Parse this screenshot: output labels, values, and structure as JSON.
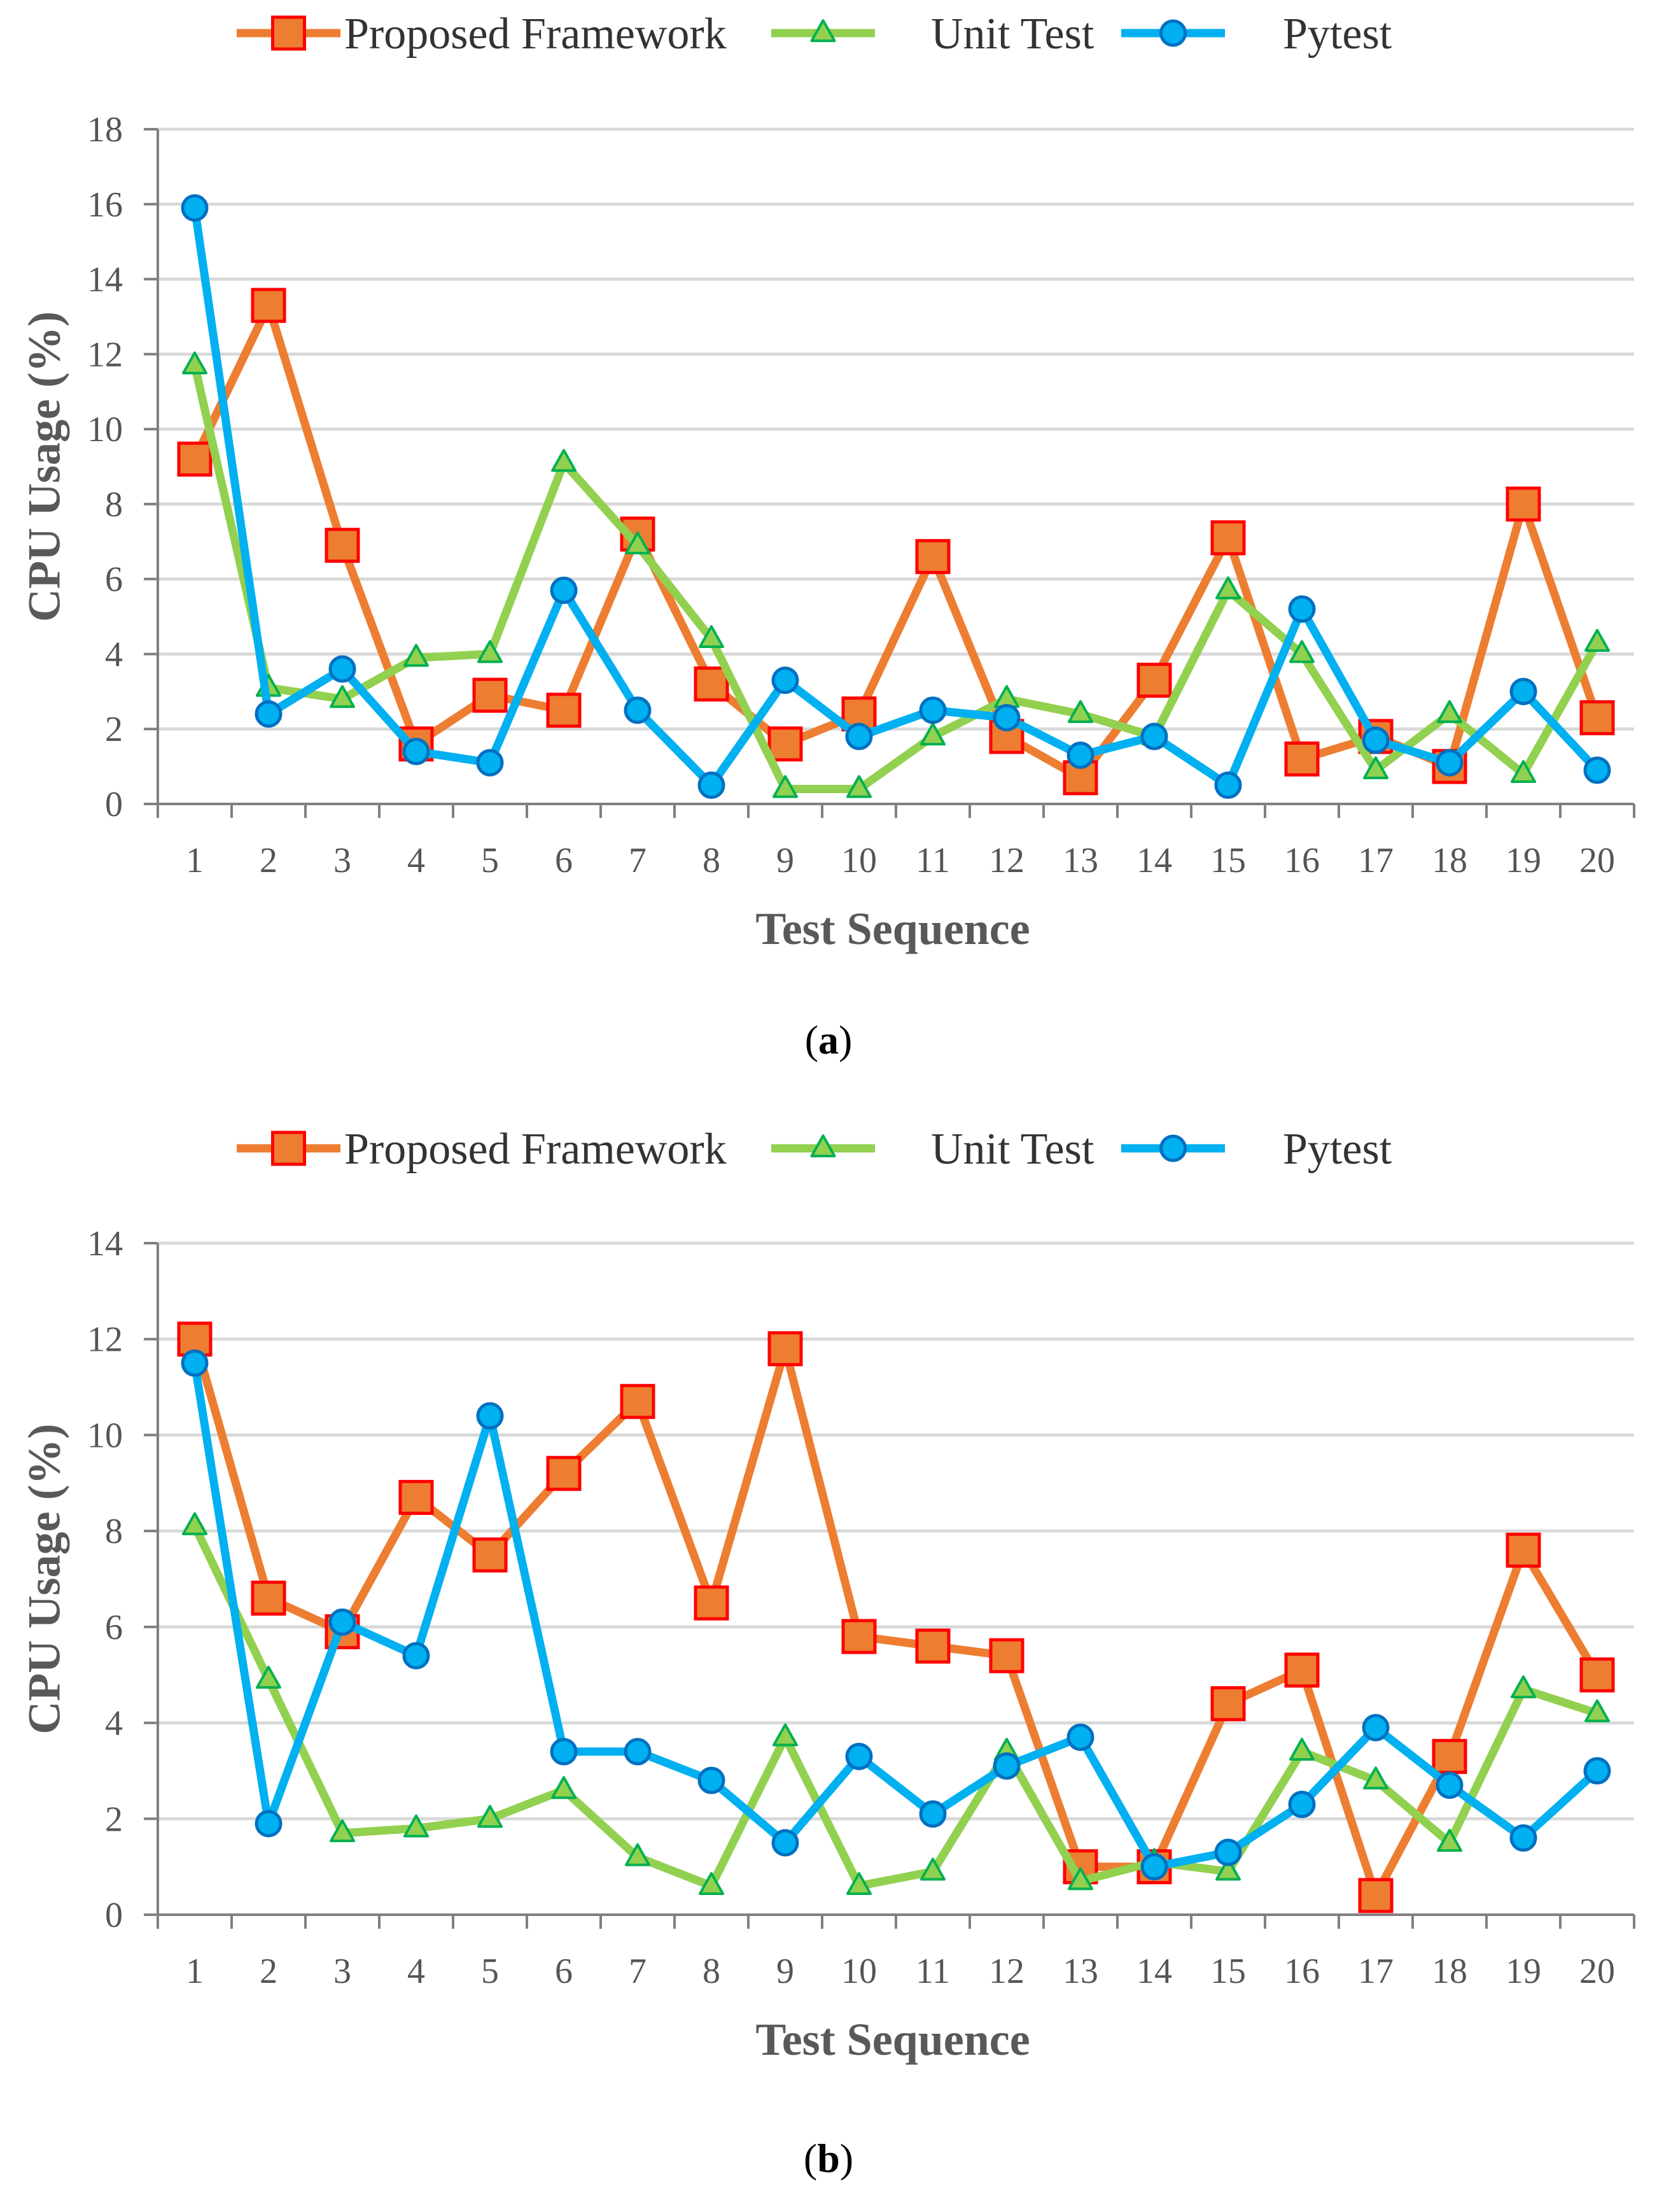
{
  "figure": {
    "panels": [
      "a",
      "b"
    ]
  },
  "legend": [
    {
      "name": "Proposed Framework",
      "marker": "square-marker",
      "color": "#ED7D31",
      "edge": "#FF0000"
    },
    {
      "name": "Unit Test",
      "marker": "triangle-marker",
      "color": "#92D050",
      "edge": "#00B050"
    },
    {
      "name": "Pytest",
      "marker": "circle-marker",
      "color": "#00B0F0",
      "edge": "#0070C0"
    }
  ],
  "chart_data": [
    {
      "type": "line",
      "panel_label": "a",
      "xlabel": "Test Sequence",
      "ylabel": "CPU Usage (%)",
      "ylim": [
        0,
        18
      ],
      "yticks": [
        0,
        2,
        4,
        6,
        8,
        10,
        12,
        14,
        16,
        18
      ],
      "grid": true,
      "legend_position": "top",
      "categories": [
        "1",
        "2",
        "3",
        "4",
        "5",
        "6",
        "7",
        "8",
        "9",
        "10",
        "11",
        "12",
        "13",
        "14",
        "15",
        "16",
        "17",
        "18",
        "19",
        "20"
      ],
      "series": [
        {
          "name": "Proposed Framework",
          "values": [
            9.2,
            13.3,
            6.9,
            1.6,
            2.9,
            2.5,
            7.2,
            3.2,
            1.6,
            2.4,
            6.6,
            1.8,
            0.7,
            3.3,
            7.1,
            1.2,
            1.8,
            1.0,
            8.0,
            2.3
          ]
        },
        {
          "name": "Unit Test",
          "values": [
            11.7,
            3.1,
            2.8,
            3.9,
            4.0,
            9.1,
            6.9,
            4.4,
            0.4,
            0.4,
            1.8,
            2.8,
            2.4,
            1.8,
            5.7,
            4.0,
            0.9,
            2.4,
            0.8,
            4.3
          ]
        },
        {
          "name": "Pytest",
          "values": [
            15.9,
            2.4,
            3.6,
            1.4,
            1.1,
            5.7,
            2.5,
            0.5,
            3.3,
            1.8,
            2.5,
            2.3,
            1.3,
            1.8,
            0.5,
            5.2,
            1.7,
            1.1,
            3.0,
            0.9
          ]
        }
      ]
    },
    {
      "type": "line",
      "panel_label": "b",
      "xlabel": "Test Sequence",
      "ylabel": "CPU Usage (%)",
      "ylim": [
        0,
        14
      ],
      "yticks": [
        0,
        2,
        4,
        6,
        8,
        10,
        12,
        14
      ],
      "grid": true,
      "legend_position": "top",
      "categories": [
        "1",
        "2",
        "3",
        "4",
        "5",
        "6",
        "7",
        "8",
        "9",
        "10",
        "11",
        "12",
        "13",
        "14",
        "15",
        "16",
        "17",
        "18",
        "19",
        "20"
      ],
      "series": [
        {
          "name": "Proposed Framework",
          "values": [
            12.0,
            6.6,
            5.9,
            8.7,
            7.5,
            9.2,
            10.7,
            6.5,
            11.8,
            5.8,
            5.6,
            5.4,
            1.0,
            1.0,
            4.4,
            5.1,
            0.4,
            3.3,
            7.6,
            5.0
          ]
        },
        {
          "name": "Unit Test",
          "values": [
            8.1,
            4.9,
            1.7,
            1.8,
            2.0,
            2.6,
            1.2,
            0.6,
            3.7,
            0.6,
            0.9,
            3.4,
            0.7,
            1.1,
            0.9,
            3.4,
            2.8,
            1.5,
            4.7,
            4.2
          ]
        },
        {
          "name": "Pytest",
          "values": [
            11.5,
            1.9,
            6.1,
            5.4,
            10.4,
            3.4,
            3.4,
            2.8,
            1.5,
            3.3,
            2.1,
            3.1,
            3.7,
            1.0,
            1.3,
            2.3,
            3.9,
            2.7,
            1.6,
            3.0
          ]
        }
      ]
    }
  ]
}
